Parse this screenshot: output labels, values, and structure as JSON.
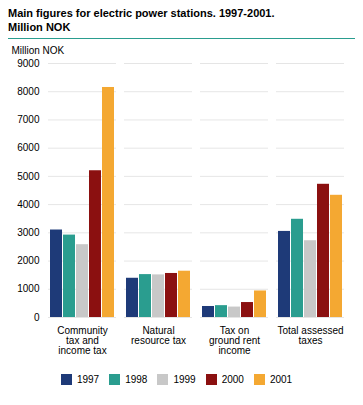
{
  "chart_data": {
    "type": "bar",
    "title": "Main figures for electric power stations. 1997-2001.",
    "subtitle": "Million NOK",
    "ylabel": "Million NOK",
    "categories": [
      "Community\ntax and\nincome tax",
      "Natural\nresource tax",
      "Tax on\nground rent\nincome",
      "Total assessed\ntaxes"
    ],
    "series": [
      {
        "name": "1997",
        "color": "#1e3a78",
        "values": [
          3100,
          1390,
          390,
          3050
        ]
      },
      {
        "name": "1998",
        "color": "#2a9d8f",
        "values": [
          2920,
          1520,
          420,
          3480
        ]
      },
      {
        "name": "1999",
        "color": "#c8c8c8",
        "values": [
          2580,
          1510,
          370,
          2720
        ]
      },
      {
        "name": "2000",
        "color": "#8b1010",
        "values": [
          5200,
          1560,
          530,
          4720
        ]
      },
      {
        "name": "2001",
        "color": "#f4a832",
        "values": [
          8150,
          1640,
          940,
          4330
        ]
      }
    ],
    "ylim": [
      0,
      9000
    ],
    "yticks": [
      0,
      1000,
      2000,
      3000,
      4000,
      5000,
      6000,
      7000,
      8000,
      9000
    ],
    "grid": true,
    "legend": "bottom"
  }
}
